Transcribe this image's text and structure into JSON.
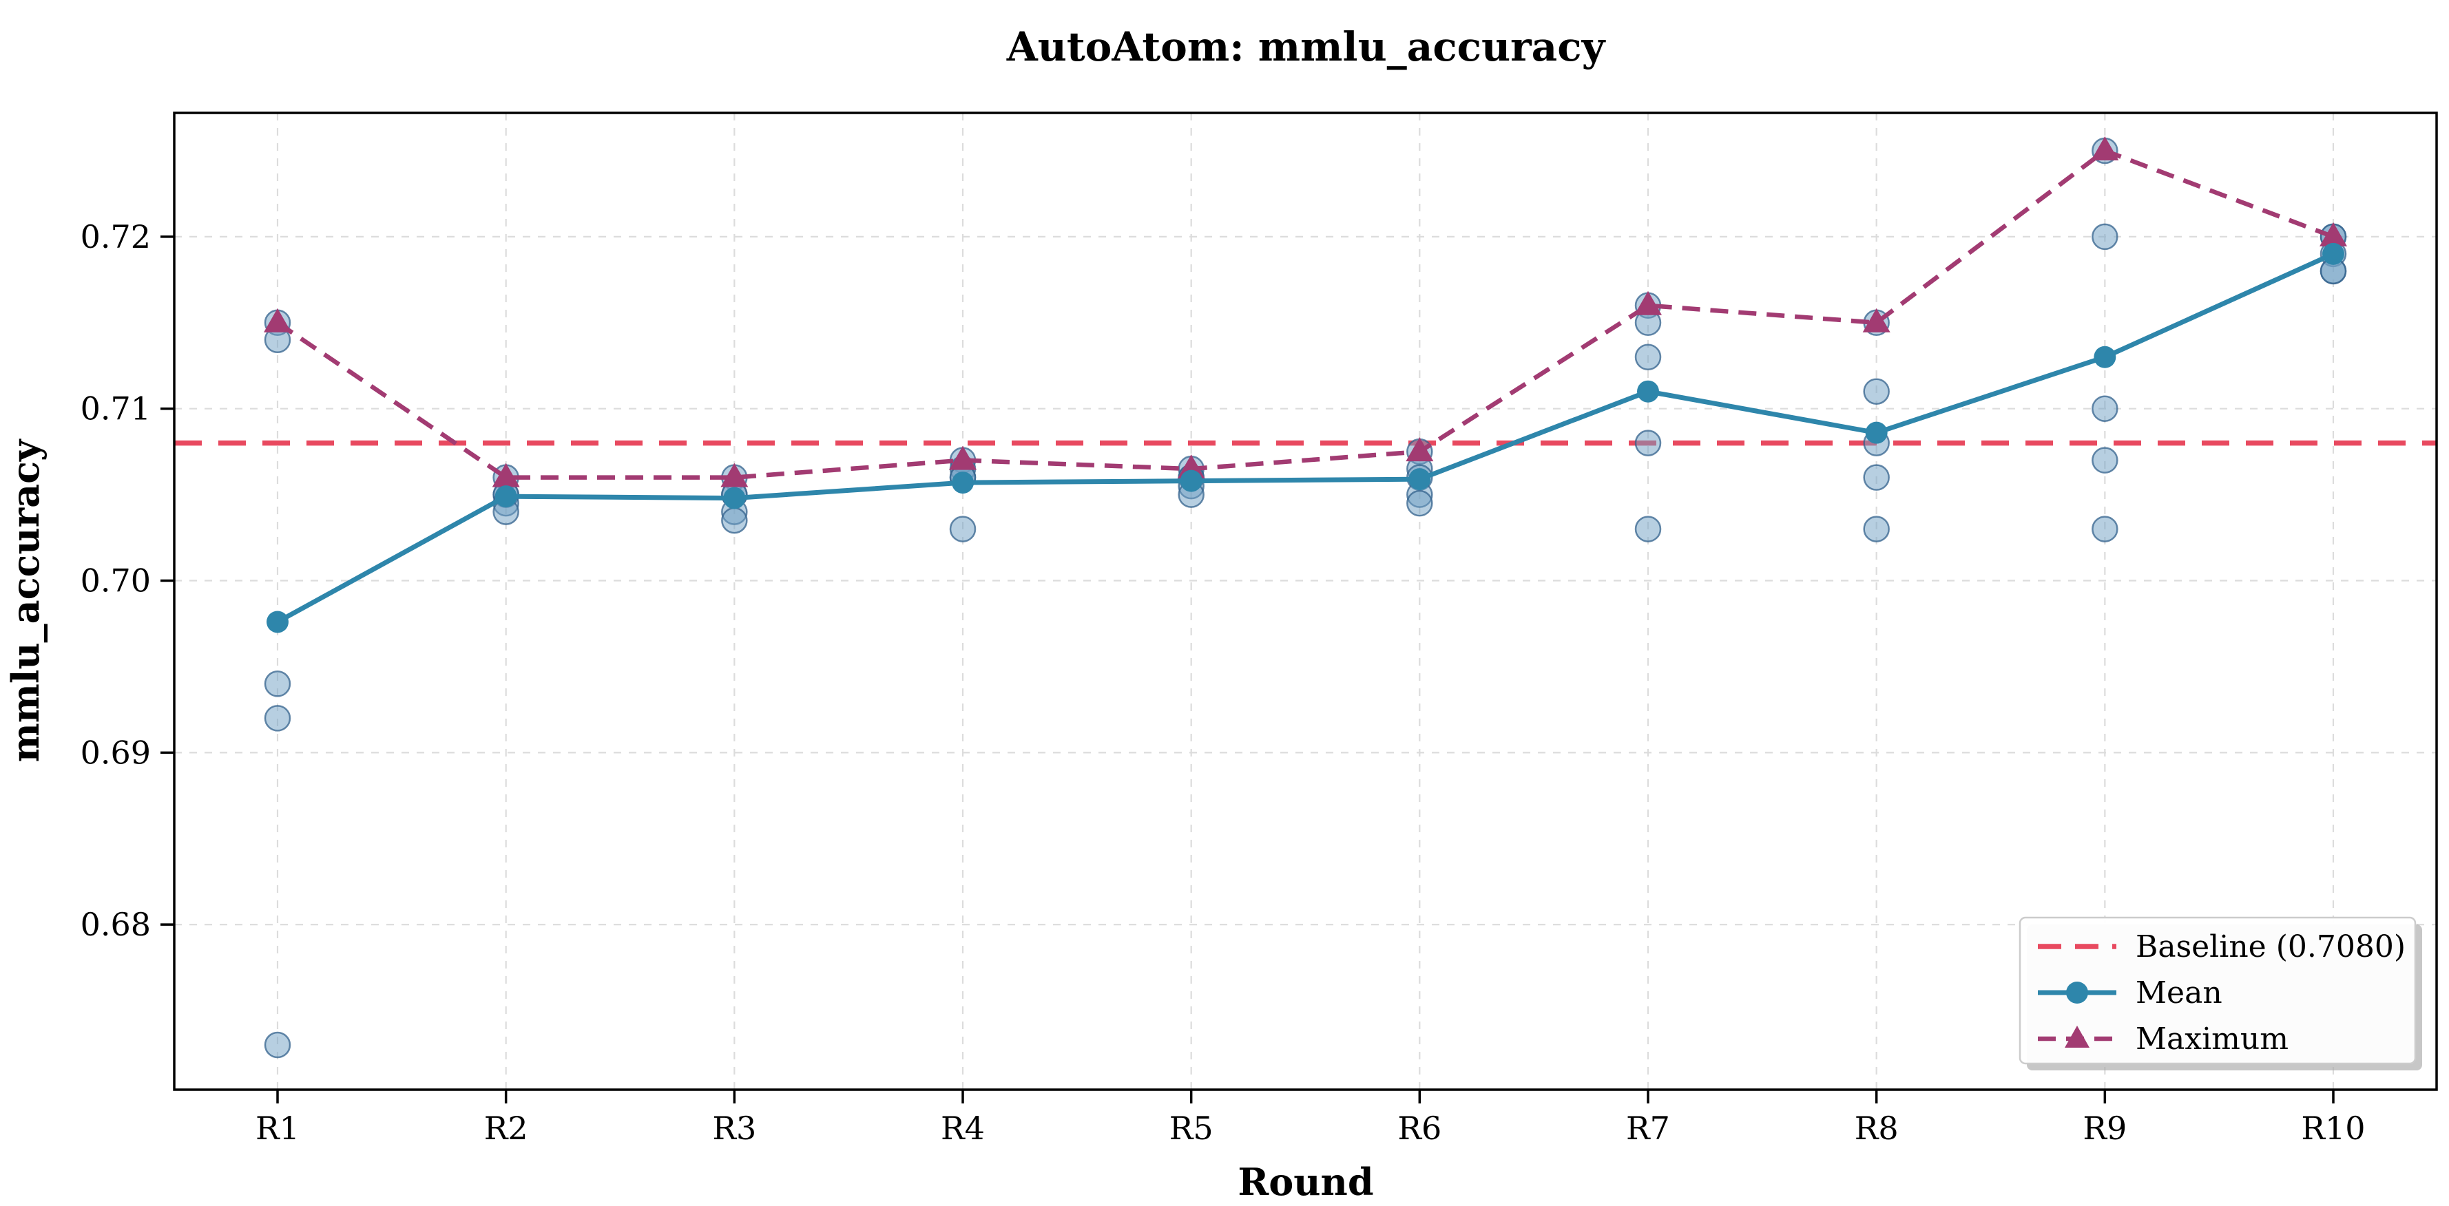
{
  "chart_data": {
    "type": "line",
    "title": "AutoAtom: mmlu_accuracy",
    "xlabel": "Round",
    "ylabel": "mmlu_accuracy",
    "categories": [
      "R1",
      "R2",
      "R3",
      "R4",
      "R5",
      "R6",
      "R7",
      "R8",
      "R9",
      "R10"
    ],
    "ytick_labels": [
      "0.68",
      "0.69",
      "0.70",
      "0.71",
      "0.72"
    ],
    "ytick_values": [
      0.68,
      0.69,
      0.7,
      0.71,
      0.72
    ],
    "ylim": [
      0.6704,
      0.7272
    ],
    "grid": true,
    "legend_position": "lower right",
    "baseline": {
      "value": 0.708,
      "label": "Baseline (0.7080)"
    },
    "series": [
      {
        "name": "Mean",
        "marker": "circle",
        "dash": "solid",
        "values": [
          0.6976,
          0.7049,
          0.7048,
          0.7057,
          0.7058,
          0.7059,
          0.711,
          0.7086,
          0.713,
          0.719
        ]
      },
      {
        "name": "Maximum",
        "marker": "triangle",
        "dash": "dashed",
        "values": [
          0.715,
          0.706,
          0.706,
          0.707,
          0.7065,
          0.7075,
          0.716,
          0.715,
          0.725,
          0.72
        ]
      }
    ],
    "scatter_runs": {
      "description": "individual run results per round",
      "per_round": [
        [
          0.715,
          0.714,
          0.694,
          0.692,
          0.673
        ],
        [
          0.706,
          0.705,
          0.705,
          0.7045,
          0.704
        ],
        [
          0.706,
          0.705,
          0.705,
          0.704,
          0.7035
        ],
        [
          0.707,
          0.7065,
          0.706,
          0.706,
          0.703
        ],
        [
          0.7065,
          0.706,
          0.706,
          0.7055,
          0.705
        ],
        [
          0.7075,
          0.7065,
          0.706,
          0.705,
          0.7045
        ],
        [
          0.716,
          0.715,
          0.713,
          0.708,
          0.703
        ],
        [
          0.715,
          0.711,
          0.708,
          0.706,
          0.703
        ],
        [
          0.725,
          0.72,
          0.71,
          0.707,
          0.703
        ],
        [
          0.72,
          0.72,
          0.719,
          0.718,
          0.718
        ]
      ]
    },
    "colors": {
      "baseline": "#E8495F",
      "mean": "#2E86AB",
      "maximum": "#A23B72",
      "scatter_fill": "#6F9FC4",
      "scatter_edge": "#33618C",
      "grid": "#DCDCDC",
      "axis": "#000000",
      "background": "#FFFFFF"
    }
  },
  "legend": {
    "entries": [
      {
        "label": "Baseline (0.7080)"
      },
      {
        "label": "Mean"
      },
      {
        "label": "Maximum"
      }
    ]
  }
}
